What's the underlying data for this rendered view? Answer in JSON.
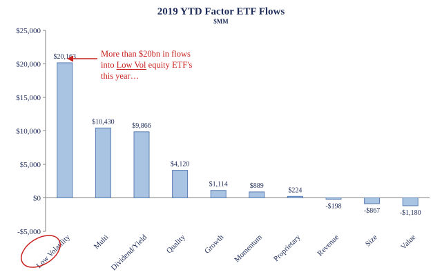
{
  "chart_data": {
    "type": "bar",
    "title": "2019 YTD Factor ETF Flows",
    "subtitle": "$MM",
    "categories": [
      "Low Volatility",
      "Multi",
      "Dividend/Yield",
      "Quality",
      "Growth",
      "Momentum",
      "Proprietary",
      "Revenue",
      "Size",
      "Value"
    ],
    "values": [
      20163,
      10430,
      9866,
      4120,
      1114,
      889,
      224,
      -198,
      -867,
      -1180
    ],
    "data_labels": [
      "$20,163",
      "$10,430",
      "$9,866",
      "$4,120",
      "$1,114",
      "$889",
      "$224",
      "-$198",
      "-$867",
      "-$1,180"
    ],
    "ylim": [
      -5000,
      25000
    ],
    "yticks": [
      -5000,
      0,
      5000,
      10000,
      15000,
      20000,
      25000
    ],
    "ytick_labels": [
      "-$5,000",
      "$0",
      "$5,000",
      "$10,000",
      "$15,000",
      "$20,000",
      "$25,000"
    ],
    "xlabel": "",
    "ylabel": "",
    "grid": false,
    "bar_color": "#a9c3e2",
    "bar_edge_color": "#5b7fb3",
    "text_color": "#1f2d5a",
    "annotation": {
      "lines": [
        "More than $20bn in flows",
        "into Low Vol equity ETF's",
        "this year…"
      ],
      "underlined": "Low Vol",
      "color": "#c8201e",
      "points_to": "Low Volatility",
      "circled_category": "Low Volatility"
    }
  }
}
